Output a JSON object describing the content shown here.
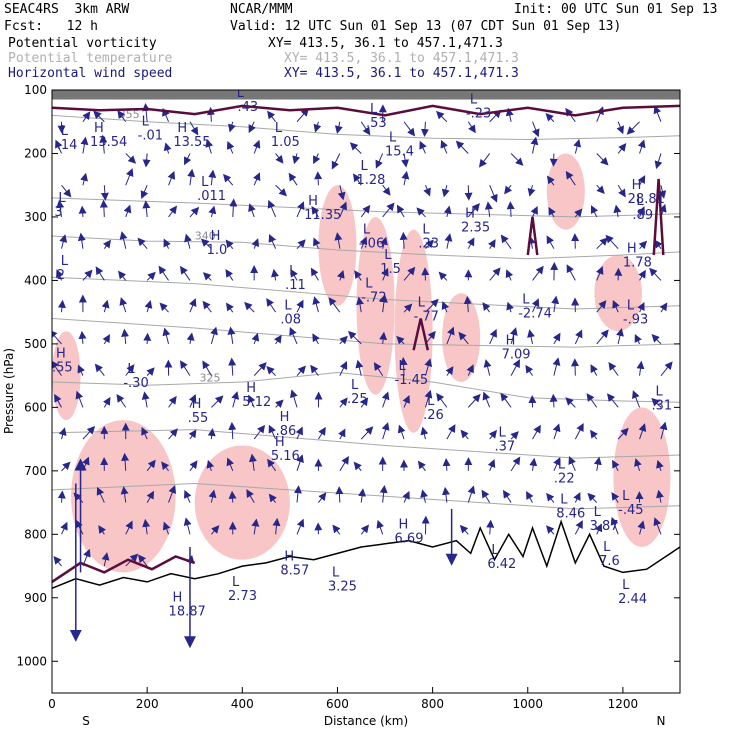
{
  "header": {
    "model": "SEAC4RS  3km ARW",
    "org": "NCAR/MMM",
    "init": "Init: 00 UTC Sun 01 Sep 13",
    "fcst": "Fcst:   12 h",
    "valid": "Valid: 12 UTC Sun 01 Sep 13 (07 CDT Sun 01 Sep 13)"
  },
  "legend": [
    {
      "name": "Potential vorticity",
      "xy": "XY= 413.5, 36.1 to 457.1,471.3",
      "color": "#000000",
      "xy_color": "#000000"
    },
    {
      "name": "Potential temperature",
      "xy": "XY= 413.5, 36.1 to 457.1,471.3",
      "color": "#b0b0b0",
      "xy_color": "#b0b0b0"
    },
    {
      "name": "Horizontal wind speed",
      "xy": "XY= 413.5, 36.1 to 457.1,471.3",
      "color": "#1a1a7a",
      "xy_color": "#1a1a7a"
    }
  ],
  "colors": {
    "wind": "#27268a",
    "pv": "#5a0d3c",
    "theta": "#a8a8a8",
    "shade": "#f7c0c0"
  },
  "chart_data": {
    "type": "cross-section",
    "xlabel": "Distance (km)",
    "ylabel": "Pressure (hPa)",
    "xlim": [
      0,
      1320
    ],
    "ylim": [
      100,
      1050
    ],
    "x_ticks": [
      0,
      200,
      400,
      600,
      800,
      1000,
      1200
    ],
    "y_ticks": [
      100,
      200,
      300,
      400,
      500,
      600,
      700,
      800,
      900,
      1000
    ],
    "x_end_labels": {
      "left": "S",
      "right": "N"
    },
    "terrain_p": [
      [
        0,
        885
      ],
      [
        50,
        870
      ],
      [
        100,
        880
      ],
      [
        150,
        868
      ],
      [
        200,
        875
      ],
      [
        250,
        862
      ],
      [
        300,
        870
      ],
      [
        350,
        862
      ],
      [
        400,
        850
      ],
      [
        450,
        845
      ],
      [
        500,
        835
      ],
      [
        550,
        840
      ],
      [
        600,
        830
      ],
      [
        650,
        820
      ],
      [
        700,
        815
      ],
      [
        750,
        810
      ],
      [
        800,
        820
      ],
      [
        850,
        810
      ],
      [
        880,
        830
      ],
      [
        900,
        790
      ],
      [
        930,
        840
      ],
      [
        960,
        800
      ],
      [
        990,
        835
      ],
      [
        1010,
        790
      ],
      [
        1040,
        850
      ],
      [
        1070,
        780
      ],
      [
        1100,
        845
      ],
      [
        1130,
        800
      ],
      [
        1160,
        850
      ],
      [
        1200,
        860
      ],
      [
        1250,
        855
      ],
      [
        1300,
        830
      ],
      [
        1320,
        820
      ]
    ],
    "theta_lines": [
      {
        "label": "355",
        "x": 140,
        "points": [
          [
            0,
            140
          ],
          [
            200,
            150
          ],
          [
            400,
            158
          ],
          [
            600,
            170
          ],
          [
            800,
            176
          ],
          [
            1000,
            178
          ],
          [
            1200,
            175
          ],
          [
            1320,
            172
          ]
        ]
      },
      {
        "label": "340",
        "x": 300,
        "points": [
          [
            0,
            330
          ],
          [
            200,
            338
          ],
          [
            400,
            340
          ],
          [
            600,
            352
          ],
          [
            800,
            360
          ],
          [
            1000,
            366
          ],
          [
            1200,
            360
          ],
          [
            1320,
            355
          ]
        ]
      },
      {
        "label": "325",
        "x": 310,
        "points": [
          [
            0,
            560
          ],
          [
            200,
            565
          ],
          [
            400,
            560
          ],
          [
            600,
            545
          ],
          [
            800,
            560
          ],
          [
            1000,
            585
          ],
          [
            1200,
            590
          ],
          [
            1320,
            592
          ]
        ]
      },
      {
        "points": [
          [
            0,
            270
          ],
          [
            300,
            278
          ],
          [
            700,
            292
          ],
          [
            1100,
            300
          ],
          [
            1320,
            295
          ]
        ]
      },
      {
        "points": [
          [
            0,
            395
          ],
          [
            300,
            405
          ],
          [
            700,
            430
          ],
          [
            1100,
            445
          ],
          [
            1320,
            440
          ]
        ]
      },
      {
        "points": [
          [
            0,
            460
          ],
          [
            300,
            475
          ],
          [
            700,
            500
          ],
          [
            1100,
            505
          ],
          [
            1320,
            500
          ]
        ]
      },
      {
        "points": [
          [
            0,
            640
          ],
          [
            300,
            635
          ],
          [
            700,
            660
          ],
          [
            1100,
            680
          ],
          [
            1320,
            675
          ]
        ]
      },
      {
        "points": [
          [
            0,
            730
          ],
          [
            300,
            720
          ],
          [
            700,
            740
          ],
          [
            1100,
            760
          ],
          [
            1320,
            755
          ]
        ]
      }
    ],
    "pv_contours": [
      {
        "points": [
          [
            0,
            128
          ],
          [
            100,
            132
          ],
          [
            200,
            130
          ],
          [
            300,
            138
          ],
          [
            400,
            125
          ],
          [
            500,
            132
          ],
          [
            600,
            128
          ],
          [
            700,
            140
          ],
          [
            800,
            125
          ],
          [
            900,
            138
          ],
          [
            1000,
            128
          ],
          [
            1100,
            140
          ],
          [
            1200,
            128
          ],
          [
            1320,
            125
          ]
        ]
      },
      {
        "points": [
          [
            0,
            875
          ],
          [
            60,
            845
          ],
          [
            110,
            860
          ],
          [
            160,
            840
          ],
          [
            210,
            855
          ],
          [
            260,
            835
          ],
          [
            300,
            845
          ]
        ]
      },
      {
        "points": [
          [
            760,
            510
          ],
          [
            775,
            460
          ],
          [
            790,
            510
          ]
        ]
      },
      {
        "points": [
          [
            1000,
            360
          ],
          [
            1010,
            300
          ],
          [
            1020,
            360
          ]
        ]
      },
      {
        "points": [
          [
            1265,
            360
          ],
          [
            1275,
            240
          ],
          [
            1285,
            360
          ]
        ]
      }
    ],
    "shaded_regions": [
      {
        "x0": 560,
        "x1": 640,
        "p0": 250,
        "p1": 440
      },
      {
        "x0": 640,
        "x1": 720,
        "p0": 300,
        "p1": 580
      },
      {
        "x0": 720,
        "x1": 800,
        "p0": 320,
        "p1": 640
      },
      {
        "x0": 40,
        "x1": 260,
        "p0": 620,
        "p1": 860
      },
      {
        "x0": 300,
        "x1": 500,
        "p0": 660,
        "p1": 840
      },
      {
        "x0": 820,
        "x1": 900,
        "p0": 420,
        "p1": 560
      },
      {
        "x0": 1040,
        "x1": 1120,
        "p0": 200,
        "p1": 320
      },
      {
        "x0": 1140,
        "x1": 1240,
        "p0": 360,
        "p1": 480
      },
      {
        "x0": 0,
        "x1": 60,
        "p0": 480,
        "p1": 620
      },
      {
        "x0": 1180,
        "x1": 1300,
        "p0": 600,
        "p1": 820
      }
    ],
    "wind_barbs": [
      {
        "x": 50,
        "p_start": 720,
        "p_end": 960,
        "dir": "down"
      },
      {
        "x": 60,
        "p_start": 860,
        "p_end": 690,
        "dir": "up"
      },
      {
        "x": 290,
        "p_start": 820,
        "p_end": 970,
        "dir": "down"
      },
      {
        "x": 840,
        "p_start": 760,
        "p_end": 840,
        "dir": "down"
      }
    ],
    "annotations": [
      {
        "type": "H",
        "text": "13.54",
        "x": 80,
        "p": 185
      },
      {
        "type": "H",
        "text": "13.55",
        "x": 255,
        "p": 185
      },
      {
        "type": "L",
        "text": "-.01",
        "x": 180,
        "p": 175
      },
      {
        "type": "L",
        "text": ".14",
        "x": 10,
        "p": 190
      },
      {
        "type": "L",
        "text": "-.43",
        "x": 380,
        "p": 130
      },
      {
        "type": "L",
        "text": "1.05",
        "x": 460,
        "p": 185
      },
      {
        "type": "L",
        "text": ".53",
        "x": 660,
        "p": 155
      },
      {
        "type": "L",
        "text": "1.28",
        "x": 640,
        "p": 245
      },
      {
        "type": "L",
        "text": "15.4",
        "x": 700,
        "p": 200
      },
      {
        "type": "L",
        "text": "-.23",
        "x": 870,
        "p": 140
      },
      {
        "type": "H",
        "text": "28.81",
        "x": 1210,
        "p": 275
      },
      {
        "type": "L",
        "text": ".89",
        "x": 1220,
        "p": 300
      },
      {
        "type": "L",
        "text": ".011",
        "x": 305,
        "p": 270
      },
      {
        "type": "H",
        "text": "11.35",
        "x": 530,
        "p": 300
      },
      {
        "type": "L",
        "text": "-.06",
        "x": 645,
        "p": 345
      },
      {
        "type": "H",
        "text": "1.0",
        "x": 325,
        "p": 355
      },
      {
        "type": "H",
        "text": "2.35",
        "x": 860,
        "p": 320
      },
      {
        "type": "L",
        "text": ".23",
        "x": 770,
        "p": 345
      },
      {
        "type": "H",
        "text": "1.78",
        "x": 1200,
        "p": 375
      },
      {
        "type": "L",
        "text": ".11",
        "x": 490,
        "p": 410
      },
      {
        "type": "L",
        "text": "1.5",
        "x": 690,
        "p": 385
      },
      {
        "type": "L",
        "text": "-.72",
        "x": 650,
        "p": 430
      },
      {
        "type": "L",
        "text": ".08",
        "x": 480,
        "p": 465
      },
      {
        "type": "L",
        "text": "-.77",
        "x": 760,
        "p": 460
      },
      {
        "type": "L",
        "text": "-2.74",
        "x": 980,
        "p": 455
      },
      {
        "type": "L",
        "text": "-.93",
        "x": 1200,
        "p": 465
      },
      {
        "type": "H",
        "text": "7.09",
        "x": 945,
        "p": 520
      },
      {
        "type": "H",
        "text": ".55",
        "x": 0,
        "p": 540
      },
      {
        "type": "L",
        "text": "-.30",
        "x": 150,
        "p": 565
      },
      {
        "type": "L",
        "text": "-1.45",
        "x": 720,
        "p": 560
      },
      {
        "type": "H",
        "text": "5.12",
        "x": 400,
        "p": 595
      },
      {
        "type": "H",
        "text": ".55",
        "x": 285,
        "p": 620
      },
      {
        "type": "L",
        "text": ".25",
        "x": 620,
        "p": 590
      },
      {
        "type": "L",
        "text": ".26",
        "x": 780,
        "p": 615
      },
      {
        "type": "L",
        "text": ".31",
        "x": 1260,
        "p": 600
      },
      {
        "type": "H",
        "text": ".86",
        "x": 470,
        "p": 640
      },
      {
        "type": "H",
        "text": "5.16",
        "x": 460,
        "p": 680
      },
      {
        "type": "L",
        "text": ".37",
        "x": 930,
        "p": 665
      },
      {
        "type": "L",
        "text": "-.45",
        "x": 1190,
        "p": 765
      },
      {
        "type": "L",
        "text": ".22",
        "x": 1055,
        "p": 715
      },
      {
        "type": "L",
        "text": "8.46",
        "x": 1060,
        "p": 770
      },
      {
        "type": "L",
        "text": "3.87",
        "x": 1130,
        "p": 790
      },
      {
        "type": "H",
        "text": "6.69",
        "x": 720,
        "p": 810
      },
      {
        "type": "L",
        "text": "6.42",
        "x": 915,
        "p": 850
      },
      {
        "type": "H",
        "text": "8.57",
        "x": 480,
        "p": 860
      },
      {
        "type": "L",
        "text": "3.25",
        "x": 580,
        "p": 885
      },
      {
        "type": "L",
        "text": "2.73",
        "x": 370,
        "p": 900
      },
      {
        "type": "H",
        "text": "18.87",
        "x": 245,
        "p": 925
      },
      {
        "type": "L",
        "text": "2.44",
        "x": 1190,
        "p": 905
      },
      {
        "type": "L",
        "text": "7.6",
        "x": 1150,
        "p": 845
      },
      {
        "type": "L",
        "text": "3",
        "x": 5,
        "p": 295
      },
      {
        "type": "L",
        "text": "2",
        "x": 10,
        "p": 395
      }
    ]
  }
}
